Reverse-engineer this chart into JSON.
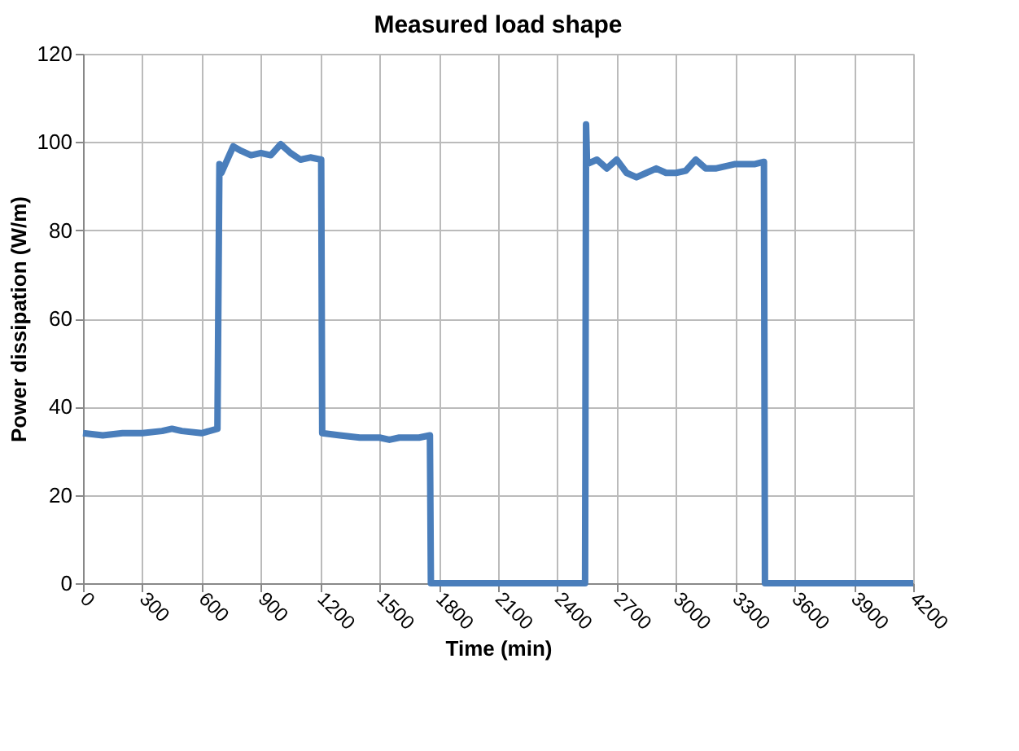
{
  "chart_data": {
    "type": "line",
    "title": "Measured load shape",
    "xlabel": "Time (min)",
    "ylabel": "Power dissipation (W/m)",
    "x": [
      0,
      100,
      200,
      300,
      400,
      450,
      500,
      600,
      680,
      690,
      700,
      720,
      760,
      800,
      850,
      900,
      950,
      1000,
      1050,
      1100,
      1150,
      1205,
      1210,
      1300,
      1400,
      1500,
      1550,
      1600,
      1700,
      1755,
      1760,
      2540,
      2545,
      2550,
      2600,
      2650,
      2700,
      2750,
      2800,
      2850,
      2900,
      2950,
      3000,
      3050,
      3100,
      3150,
      3200,
      3250,
      3300,
      3400,
      3445,
      3450,
      4200
    ],
    "series": [
      {
        "color": "#4a7ebb",
        "values": [
          34,
          33.5,
          34,
          34,
          34.5,
          35,
          34.5,
          34,
          35,
          95,
          93,
          95,
          99,
          98,
          97,
          97.5,
          97,
          99.5,
          97.5,
          96,
          96.5,
          96,
          34,
          33.5,
          33,
          33,
          32.5,
          33,
          33,
          33.5,
          0,
          0,
          104,
          95,
          96,
          94,
          96,
          93,
          92,
          93,
          94,
          93,
          93,
          93.5,
          96,
          94,
          94,
          94.5,
          95,
          95,
          95.5,
          0,
          0
        ]
      }
    ],
    "xlim": [
      0,
      4200
    ],
    "xticks": [
      0,
      300,
      600,
      900,
      1200,
      1500,
      1800,
      2100,
      2400,
      2700,
      3000,
      3300,
      3600,
      3900,
      4200
    ],
    "ylim": [
      0,
      120
    ],
    "yticks": [
      0,
      20,
      40,
      60,
      80,
      100,
      120
    ],
    "grid": true,
    "marker": "none",
    "line_style": "solid"
  }
}
